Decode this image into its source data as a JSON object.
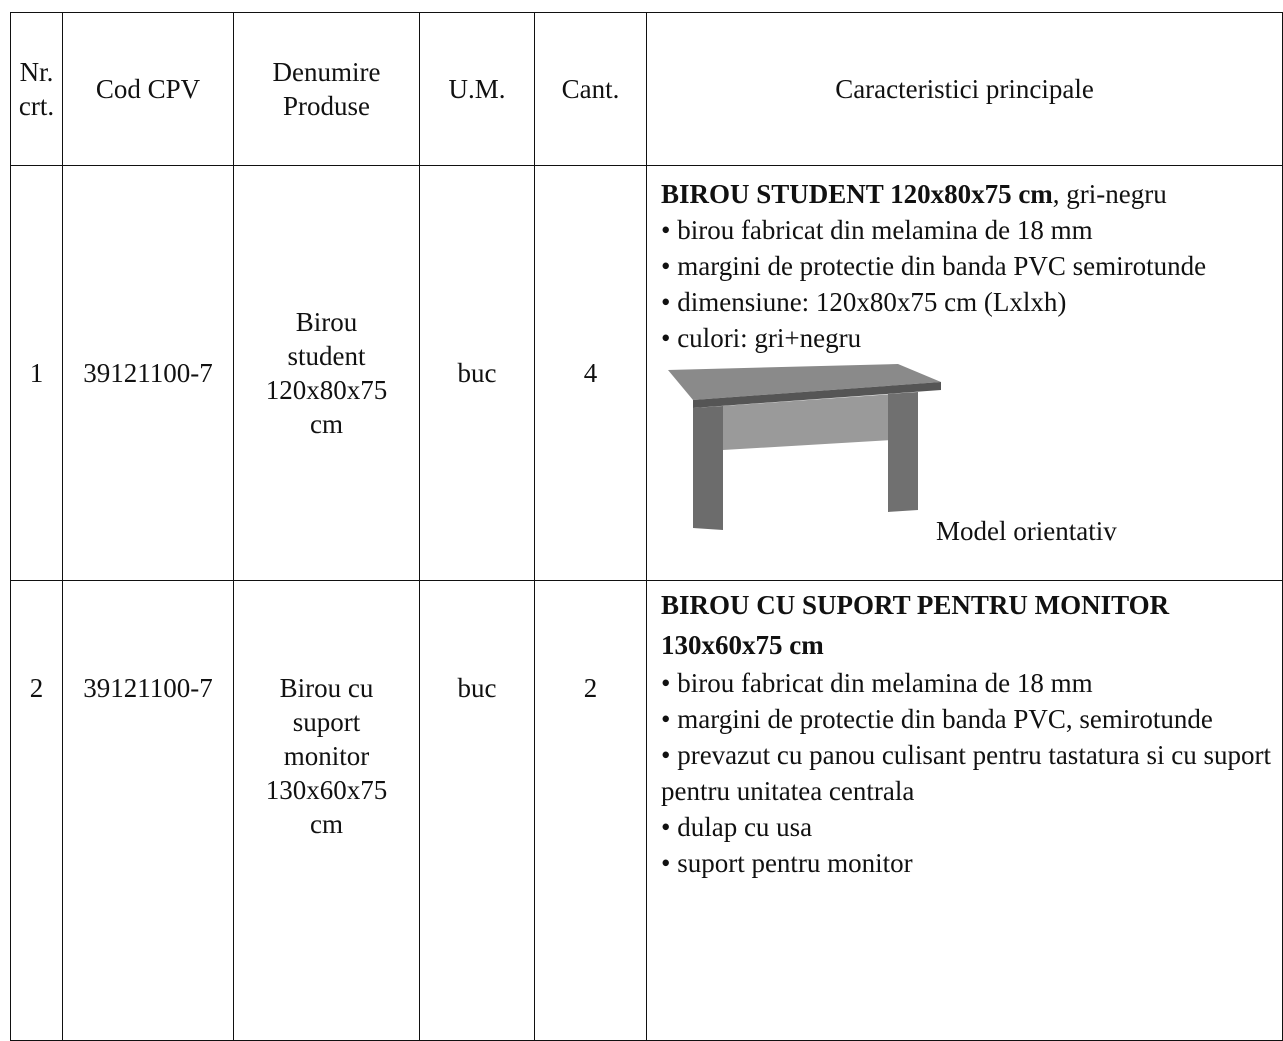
{
  "table": {
    "header": [
      "Nr. crt.",
      "Cod CPV",
      "Denumire Produse",
      "U.M.",
      "Cant.",
      "Caracteristici principale"
    ],
    "rows": [
      {
        "nr": "1",
        "cod": "39121100-7",
        "denumire": [
          "Birou",
          "student",
          "120x80x75",
          "cm"
        ],
        "um": "buc",
        "cant": "4",
        "title": "BIROU STUDENT 120x80x75 cm",
        "title_suffix": ", gri-negru",
        "items": [
          "birou fabricat din melamina de 18 mm",
          "margini de protectie din banda PVC semirotunde",
          "dimensiune: 120x80x75 cm (Lxlxh)",
          "culori: gri+negru"
        ],
        "caption": "Model orientativ"
      },
      {
        "nr": "2",
        "cod": "39121100-7",
        "denumire": [
          "Birou cu",
          "suport",
          "monitor",
          "130x60x75",
          "cm"
        ],
        "um": "buc",
        "cant": "2",
        "title": "BIROU CU SUPORT PENTRU MONITOR 130x60x75 cm",
        "items": [
          "birou fabricat din melamina de 18 mm",
          "margini de protectie din banda PVC, semirotunde",
          "prevazut cu panou culisant pentru tastatura si cu suport pentru unitatea centrala",
          "dulap cu usa",
          "suport pentru monitor"
        ]
      }
    ]
  }
}
